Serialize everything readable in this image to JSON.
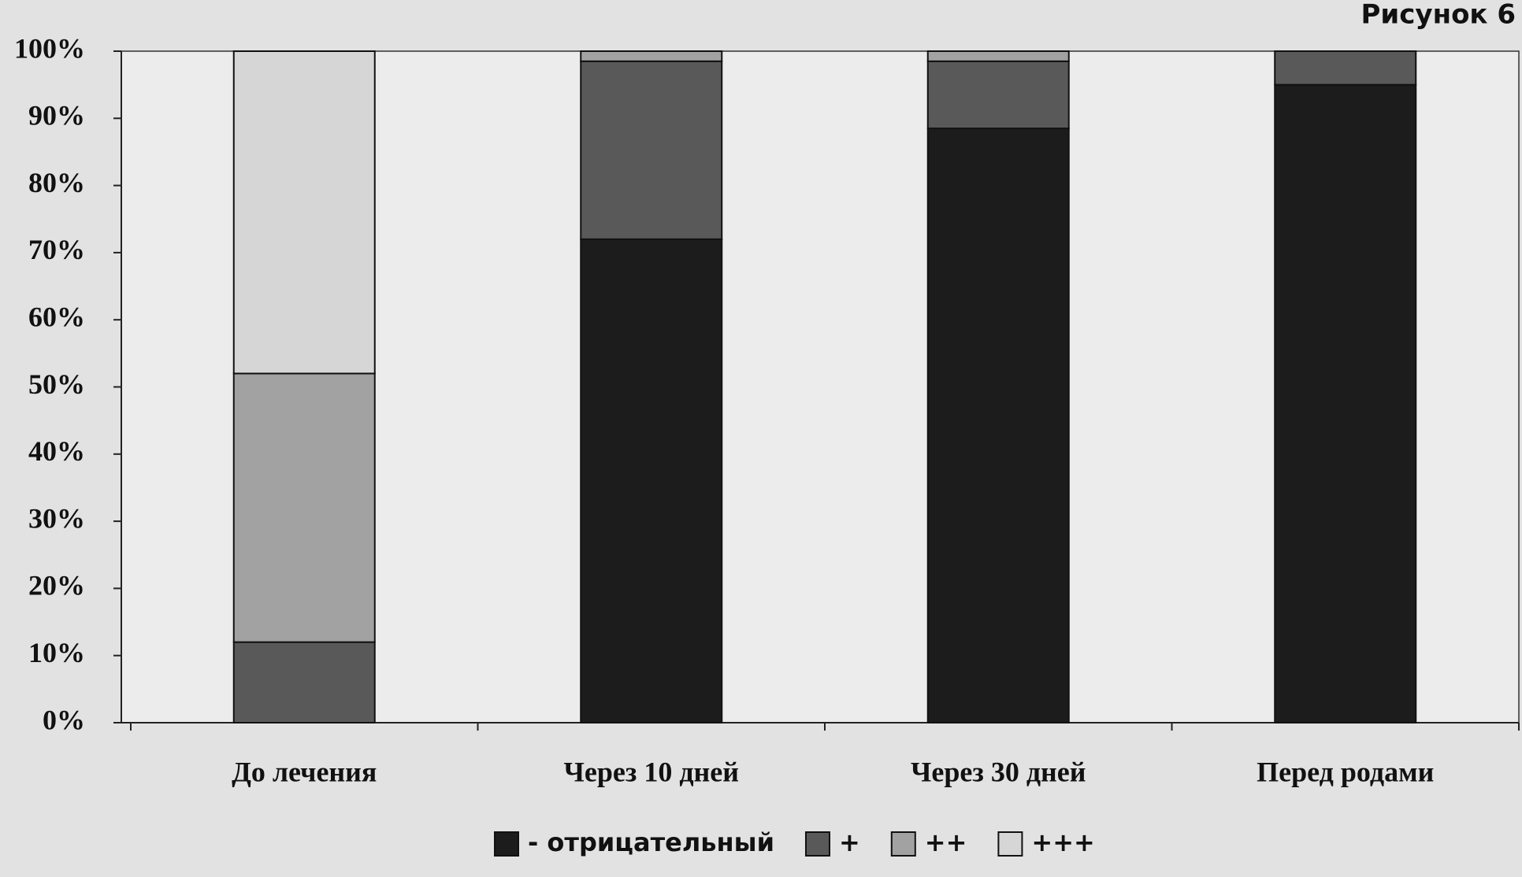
{
  "chart_data": {
    "type": "stacked_bar",
    "title": "Рисунок 6",
    "categories": [
      "До лечения",
      "Через 10 дней",
      "Через 30 дней",
      "Перед родами"
    ],
    "series": [
      {
        "name": "- отрицательный",
        "color": "#1c1c1c",
        "values": [
          0,
          72,
          88.5,
          95
        ]
      },
      {
        "name": "+",
        "color": "#595959",
        "values": [
          12,
          26.5,
          10,
          5
        ]
      },
      {
        "name": "++",
        "color": "#a2a2a2",
        "values": [
          40,
          1.5,
          1.5,
          0
        ]
      },
      {
        "name": "+++",
        "color": "#d6d6d6",
        "values": [
          48,
          0,
          0,
          0
        ]
      }
    ],
    "ylim": [
      0,
      100
    ],
    "yticks": [
      {
        "value": 0,
        "label": "0%"
      },
      {
        "value": 10,
        "label": "10%"
      },
      {
        "value": 20,
        "label": "20%"
      },
      {
        "value": 30,
        "label": "30%"
      },
      {
        "value": 40,
        "label": "40%"
      },
      {
        "value": 50,
        "label": "50%"
      },
      {
        "value": 60,
        "label": "60%"
      },
      {
        "value": 70,
        "label": "70%"
      },
      {
        "value": 80,
        "label": "80%"
      },
      {
        "value": 90,
        "label": "90%"
      },
      {
        "value": 100,
        "label": "100%"
      }
    ],
    "legend": "bottom"
  }
}
